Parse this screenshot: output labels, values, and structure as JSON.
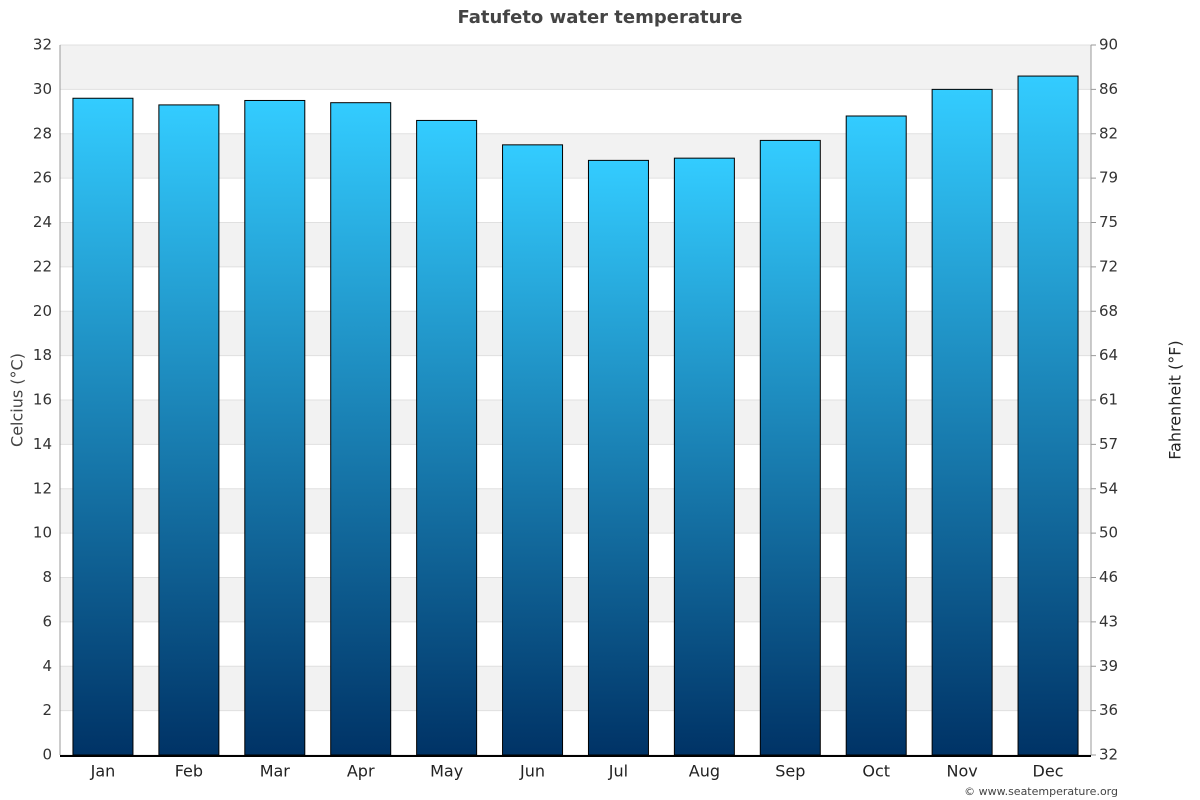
{
  "chart_data": {
    "type": "bar",
    "title": "Fatufeto water temperature",
    "categories": [
      "Jan",
      "Feb",
      "Mar",
      "Apr",
      "May",
      "Jun",
      "Jul",
      "Aug",
      "Sep",
      "Oct",
      "Nov",
      "Dec"
    ],
    "series": [
      {
        "name": "Water temperature",
        "color_top": "#33ccff",
        "color_bottom": "#003366",
        "values": [
          29.6,
          29.3,
          29.5,
          29.4,
          28.6,
          27.5,
          26.8,
          26.9,
          27.7,
          28.8,
          30.0,
          30.6
        ]
      }
    ],
    "y_label": "Celcius (°C)",
    "y2_label": "Fahrenheit (°F)",
    "ylim": [
      0,
      32
    ],
    "yticks": [
      0,
      2,
      4,
      6,
      8,
      10,
      12,
      14,
      16,
      18,
      20,
      22,
      24,
      26,
      28,
      30,
      32
    ],
    "y2lim": [
      32,
      89.6
    ],
    "y2ticks": [
      32,
      {
        "value": 35.6,
        "label": "36"
      },
      {
        "value": 39.2,
        "label": "39"
      },
      {
        "value": 42.8,
        "label": "43"
      },
      {
        "value": 46.4,
        "label": "46"
      },
      50,
      {
        "value": 53.6,
        "label": "54"
      },
      {
        "value": 57.2,
        "label": "57"
      },
      {
        "value": 60.8,
        "label": "61"
      },
      {
        "value": 64.4,
        "label": "64"
      },
      68,
      {
        "value": 71.6,
        "label": "72"
      },
      {
        "value": 75.2,
        "label": "75"
      },
      {
        "value": 78.8,
        "label": "79"
      },
      {
        "value": 82.4,
        "label": "82"
      },
      86,
      {
        "value": 89.6,
        "label": "90"
      }
    ],
    "grid": true,
    "legend": false,
    "credit": "© www.seatemperature.org"
  }
}
